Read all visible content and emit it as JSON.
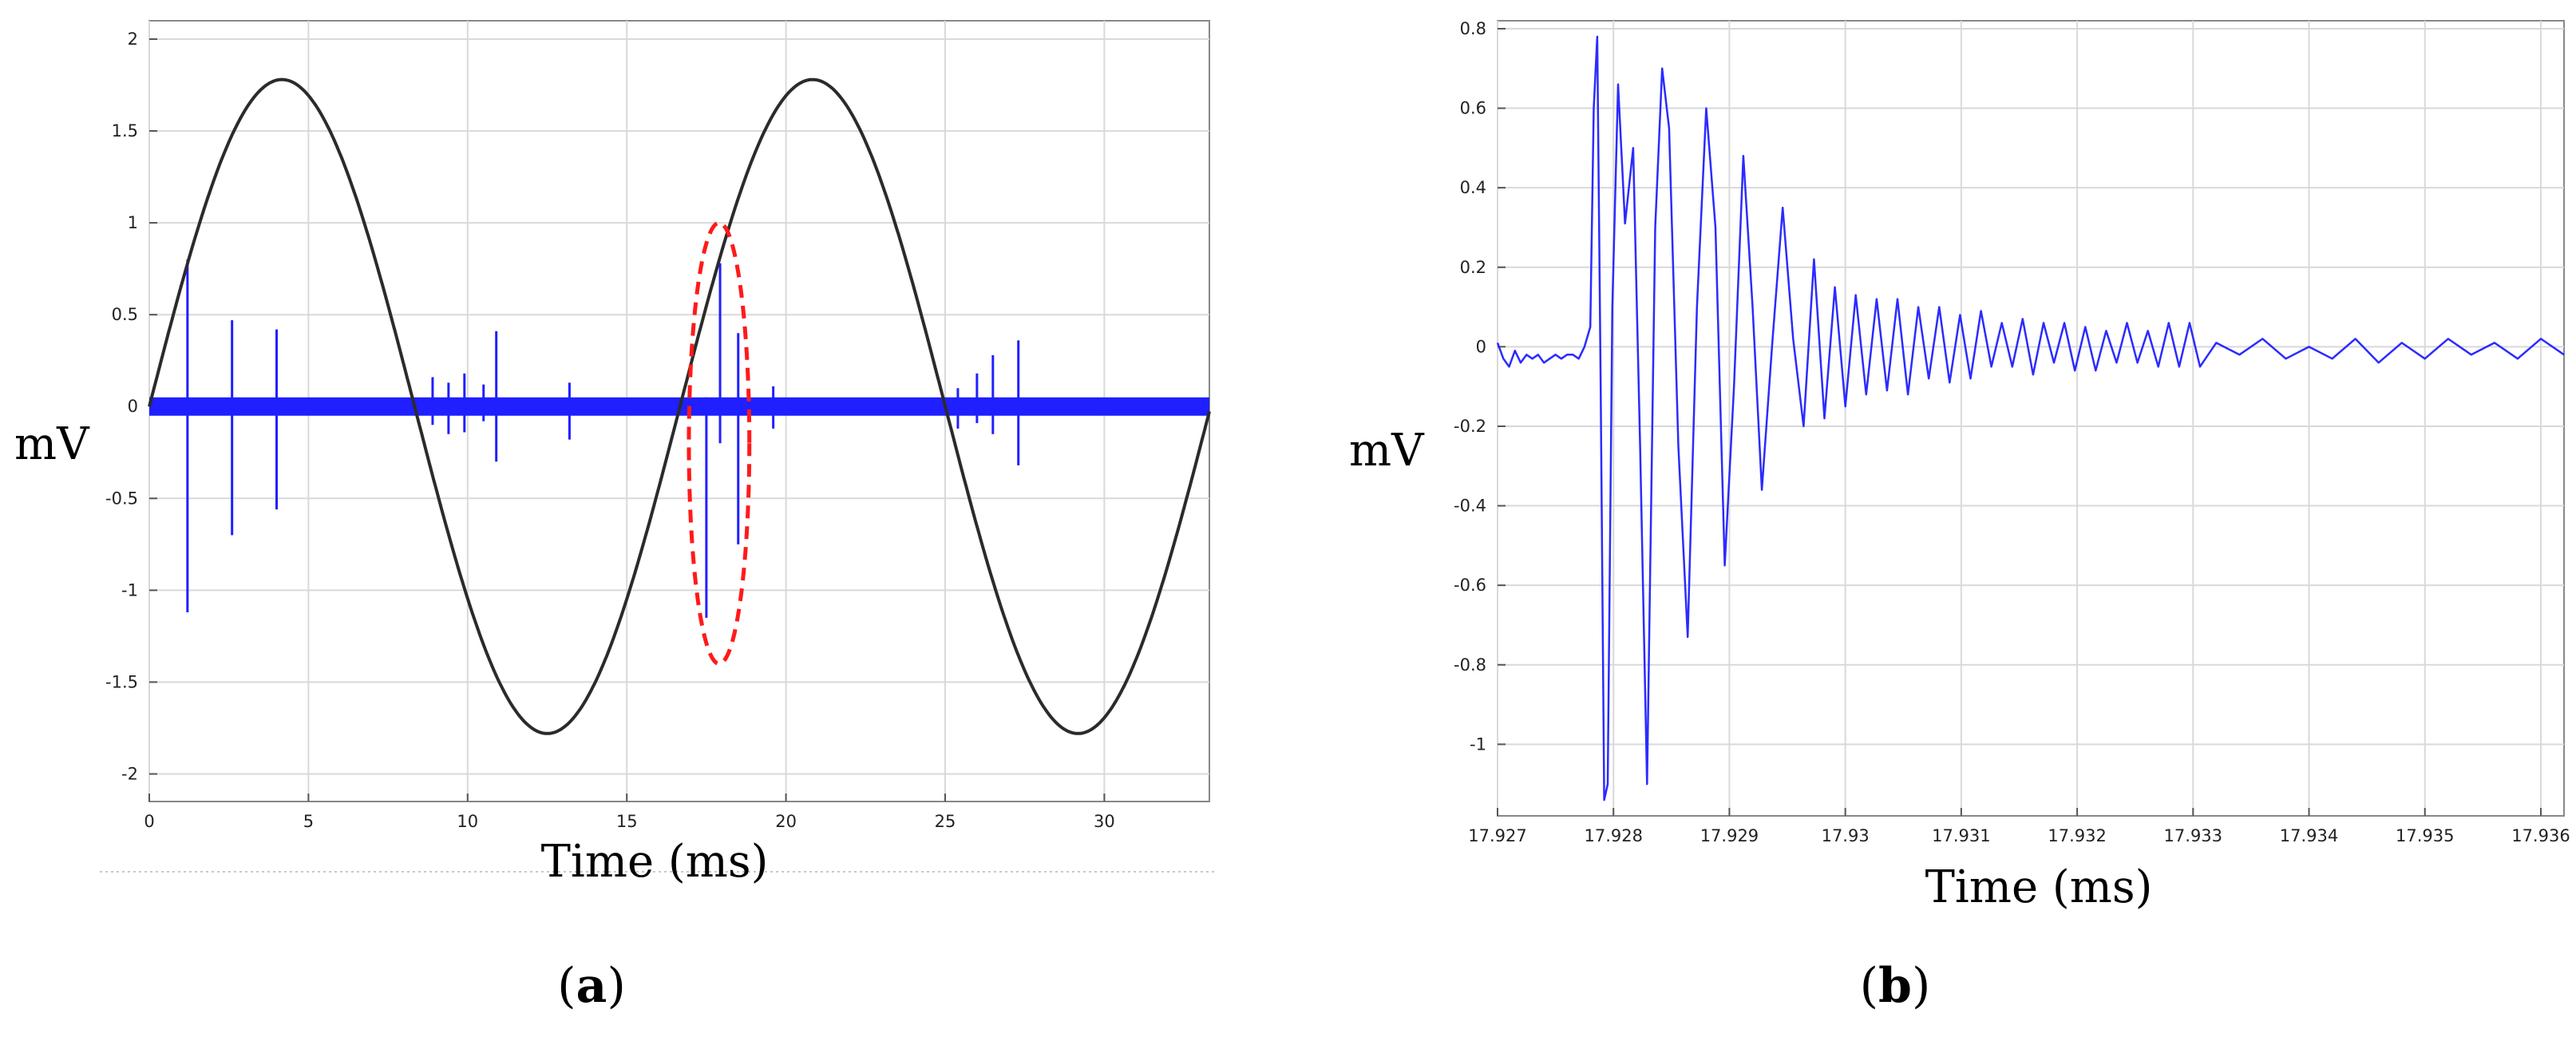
{
  "chart_data": [
    {
      "id": "a",
      "type": "line",
      "panel_label": "a",
      "xlabel": "Time (ms)",
      "ylabel": "mV",
      "xlim": [
        0,
        33.3
      ],
      "ylim": [
        -2.15,
        2.1
      ],
      "xticks": [
        0,
        5,
        10,
        15,
        20,
        25,
        30
      ],
      "xtick_labels": [
        "0",
        "5",
        "10",
        "15",
        "20",
        "25",
        "30"
      ],
      "yticks": [
        -2,
        -1.5,
        -1,
        -0.5,
        0,
        0.5,
        1,
        1.5,
        2
      ],
      "ytick_labels": [
        "-2",
        "-1.5",
        "-1",
        "-0.5",
        "0",
        "0.5",
        "1",
        "1.5",
        "2"
      ],
      "grid": true,
      "series": [
        {
          "kind": "sine",
          "color": "#2b2b2b",
          "amplitude": 1.78,
          "period_ms": 16.67,
          "x": [
            0,
            1,
            2,
            3,
            4.17,
            5,
            6,
            7,
            8.33,
            9,
            10,
            11,
            12.5,
            13,
            14,
            15,
            16.67,
            17.5,
            18.5,
            19.5,
            20.83,
            22,
            23,
            24,
            25,
            26,
            27,
            28,
            29.17,
            30,
            31,
            32,
            33.3
          ],
          "y": [
            0,
            0.66,
            1.23,
            1.63,
            1.78,
            1.72,
            1.41,
            0.9,
            0,
            -0.7,
            -1.27,
            -1.66,
            -1.78,
            -1.7,
            -1.35,
            -0.8,
            0,
            0.55,
            1.13,
            1.55,
            1.78,
            1.66,
            1.29,
            0.74,
            0,
            -0.62,
            -1.21,
            -1.6,
            -1.78,
            -1.72,
            -1.38,
            -0.86,
            0
          ]
        },
        {
          "kind": "pulse_impulses",
          "color": "#1f1fff",
          "noise_band": [
            -0.05,
            0.05
          ],
          "pulses": [
            {
              "x": 1.2,
              "up": 0.8,
              "down": -1.12
            },
            {
              "x": 2.6,
              "up": 0.47,
              "down": -0.7
            },
            {
              "x": 4.0,
              "up": 0.42,
              "down": -0.56
            },
            {
              "x": 8.9,
              "up": 0.16,
              "down": -0.1
            },
            {
              "x": 9.4,
              "up": 0.13,
              "down": -0.15
            },
            {
              "x": 9.9,
              "up": 0.18,
              "down": -0.14
            },
            {
              "x": 10.5,
              "up": 0.12,
              "down": -0.08
            },
            {
              "x": 10.9,
              "up": 0.41,
              "down": -0.3
            },
            {
              "x": 13.2,
              "up": 0.13,
              "down": -0.18
            },
            {
              "x": 17.5,
              "up": 0.05,
              "down": -1.15
            },
            {
              "x": 17.93,
              "up": 0.78,
              "down": -0.2
            },
            {
              "x": 18.5,
              "up": 0.4,
              "down": -0.75
            },
            {
              "x": 19.6,
              "up": 0.11,
              "down": -0.12
            },
            {
              "x": 25.4,
              "up": 0.1,
              "down": -0.12
            },
            {
              "x": 26.0,
              "up": 0.18,
              "down": -0.09
            },
            {
              "x": 26.5,
              "up": 0.28,
              "down": -0.15
            },
            {
              "x": 27.3,
              "up": 0.36,
              "down": -0.32
            }
          ]
        }
      ],
      "annotation": {
        "kind": "dashed-ellipse",
        "color": "#ff1a1a",
        "center_x": 17.9,
        "center_y": -0.2,
        "rx_ms": 0.95,
        "ry_mv": 1.2
      }
    },
    {
      "id": "b",
      "type": "line",
      "panel_label": "b",
      "xlabel": "Time (ms)",
      "ylabel": "mV",
      "xlim": [
        17.927,
        17.9362
      ],
      "ylim": [
        -1.18,
        0.82
      ],
      "xticks": [
        17.927,
        17.928,
        17.929,
        17.93,
        17.931,
        17.932,
        17.933,
        17.934,
        17.935,
        17.936
      ],
      "xtick_labels": [
        "17.927",
        "17.928",
        "17.929",
        "17.93",
        "17.931",
        "17.932",
        "17.933",
        "17.934",
        "17.935",
        "17.936"
      ],
      "yticks": [
        -1,
        -0.8,
        -0.6,
        -0.4,
        -0.2,
        0,
        0.2,
        0.4,
        0.6,
        0.8
      ],
      "ytick_labels": [
        "-1",
        "-0.8",
        "-0.6",
        "-0.4",
        "-0.2",
        "0",
        "0.2",
        "0.4",
        "0.6",
        "0.8"
      ],
      "grid": true,
      "series": [
        {
          "kind": "oscillation",
          "color": "#2b2bff",
          "x": [
            17.927,
            17.92705,
            17.9271,
            17.92715,
            17.9272,
            17.92725,
            17.9273,
            17.92735,
            17.9274,
            17.92745,
            17.9275,
            17.92755,
            17.9276,
            17.92765,
            17.9277,
            17.92775,
            17.9278,
            17.92783,
            17.92786,
            17.92789,
            17.92792,
            17.92795,
            17.92799,
            17.92804,
            17.9281,
            17.92817,
            17.92823,
            17.92829,
            17.92836,
            17.92842,
            17.92848,
            17.92856,
            17.92864,
            17.92872,
            17.9288,
            17.92888,
            17.92896,
            17.92904,
            17.92912,
            17.9292,
            17.92928,
            17.92937,
            17.92946,
            17.92955,
            17.92964,
            17.92973,
            17.92982,
            17.92991,
            17.93,
            17.93009,
            17.93018,
            17.93027,
            17.93036,
            17.93045,
            17.93054,
            17.93063,
            17.93072,
            17.93081,
            17.9309,
            17.93099,
            17.93108,
            17.93117,
            17.93126,
            17.93135,
            17.93144,
            17.93153,
            17.93162,
            17.93171,
            17.9318,
            17.93189,
            17.93198,
            17.93207,
            17.93216,
            17.93225,
            17.93234,
            17.93243,
            17.93252,
            17.93261,
            17.9327,
            17.93279,
            17.93288,
            17.93297,
            17.93306,
            17.9332,
            17.9334,
            17.9336,
            17.9338,
            17.934,
            17.9342,
            17.9344,
            17.9346,
            17.9348,
            17.935,
            17.9352,
            17.9354,
            17.9356,
            17.9358,
            17.936,
            17.9362
          ],
          "y": [
            0.01,
            -0.03,
            -0.05,
            -0.01,
            -0.04,
            -0.02,
            -0.03,
            -0.02,
            -0.04,
            -0.03,
            -0.02,
            -0.03,
            -0.02,
            -0.02,
            -0.03,
            0.0,
            0.05,
            0.6,
            0.78,
            -0.1,
            -1.14,
            -1.1,
            0.1,
            0.66,
            0.31,
            0.5,
            -0.25,
            -1.1,
            0.3,
            0.7,
            0.55,
            -0.25,
            -0.73,
            0.1,
            0.6,
            0.3,
            -0.55,
            -0.1,
            0.48,
            0.1,
            -0.36,
            0.01,
            0.35,
            0.02,
            -0.2,
            0.22,
            -0.18,
            0.15,
            -0.15,
            0.13,
            -0.12,
            0.12,
            -0.11,
            0.12,
            -0.12,
            0.1,
            -0.08,
            0.1,
            -0.09,
            0.08,
            -0.08,
            0.09,
            -0.05,
            0.06,
            -0.05,
            0.07,
            -0.07,
            0.06,
            -0.04,
            0.06,
            -0.06,
            0.05,
            -0.06,
            0.04,
            -0.04,
            0.06,
            -0.04,
            0.04,
            -0.05,
            0.06,
            -0.05,
            0.06,
            -0.05,
            0.01,
            -0.02,
            0.02,
            -0.03,
            0.0,
            -0.03,
            0.02,
            -0.04,
            0.01,
            -0.03,
            0.02,
            -0.02,
            0.01,
            -0.03,
            0.02,
            -0.02
          ]
        }
      ]
    }
  ]
}
